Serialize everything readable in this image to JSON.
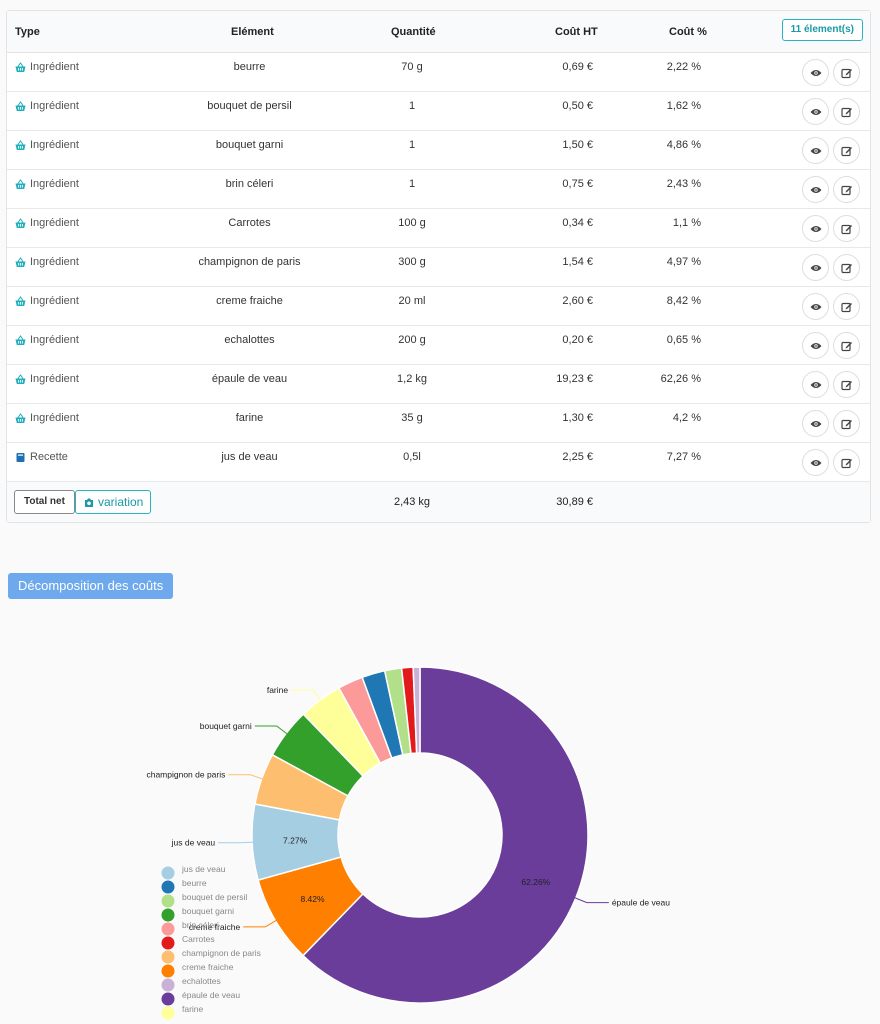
{
  "table": {
    "headers": {
      "type": "Type",
      "element": "Elément",
      "quantity": "Quantité",
      "cost": "Coût HT",
      "percent": "Coût %"
    },
    "count_badge": "11 élement(s)",
    "rows": [
      {
        "type": "Ingrédient",
        "kind": "ingredient",
        "element": "beurre",
        "quantity": "70 g",
        "cost": "0,69 €",
        "percent": "2,22 %"
      },
      {
        "type": "Ingrédient",
        "kind": "ingredient",
        "element": "bouquet de persil",
        "quantity": "1",
        "cost": "0,50 €",
        "percent": "1,62 %"
      },
      {
        "type": "Ingrédient",
        "kind": "ingredient",
        "element": "bouquet garni",
        "quantity": "1",
        "cost": "1,50 €",
        "percent": "4,86 %"
      },
      {
        "type": "Ingrédient",
        "kind": "ingredient",
        "element": "brin céleri",
        "quantity": "1",
        "cost": "0,75 €",
        "percent": "2,43 %"
      },
      {
        "type": "Ingrédient",
        "kind": "ingredient",
        "element": "Carrotes",
        "quantity": "100 g",
        "cost": "0,34 €",
        "percent": "1,1 %"
      },
      {
        "type": "Ingrédient",
        "kind": "ingredient",
        "element": "champignon de paris",
        "quantity": "300 g",
        "cost": "1,54 €",
        "percent": "4,97 %"
      },
      {
        "type": "Ingrédient",
        "kind": "ingredient",
        "element": "creme fraiche",
        "quantity": "20 ml",
        "cost": "2,60 €",
        "percent": "8,42 %"
      },
      {
        "type": "Ingrédient",
        "kind": "ingredient",
        "element": "echalottes",
        "quantity": "200 g",
        "cost": "0,20 €",
        "percent": "0,65 %"
      },
      {
        "type": "Ingrédient",
        "kind": "ingredient",
        "element": "épaule de veau",
        "quantity": "1,2 kg",
        "cost": "19,23 €",
        "percent": "62,26 %"
      },
      {
        "type": "Ingrédient",
        "kind": "ingredient",
        "element": "farine",
        "quantity": "35 g",
        "cost": "1,30 €",
        "percent": "4,2 %"
      },
      {
        "type": "Recette",
        "kind": "recipe",
        "element": "jus de veau",
        "quantity": "0,5l",
        "cost": "2,25 €",
        "percent": "7,27 %"
      }
    ],
    "footer": {
      "total_label": "Total net",
      "variation_label": "variation",
      "total_quantity": "2,43 kg",
      "total_cost": "30,89 €"
    }
  },
  "section_button": "Décomposition des coûts",
  "colors": {
    "accent": "#2ab4c0",
    "section": "#6da9ec"
  },
  "chart_data": {
    "type": "pie",
    "donut": true,
    "order": [
      "épaule de veau",
      "creme fraiche",
      "jus de veau",
      "champignon de paris",
      "bouquet garni",
      "farine",
      "brin céleri",
      "beurre",
      "bouquet de persil",
      "Carrotes",
      "echalottes"
    ],
    "slices": [
      {
        "name": "jus de veau",
        "value": 7.27,
        "color": "#a6cee3",
        "inner_label": "7.27%",
        "callout": true
      },
      {
        "name": "beurre",
        "value": 2.22,
        "color": "#1f78b4"
      },
      {
        "name": "bouquet de persil",
        "value": 1.62,
        "color": "#b2df8a"
      },
      {
        "name": "bouquet garni",
        "value": 4.86,
        "color": "#33a02c",
        "callout": true
      },
      {
        "name": "brin céleri",
        "value": 2.43,
        "color": "#fb9a99"
      },
      {
        "name": "Carrotes",
        "value": 1.1,
        "color": "#e31a1c"
      },
      {
        "name": "champignon de paris",
        "value": 4.97,
        "color": "#fdbf6f",
        "callout": true
      },
      {
        "name": "creme fraiche",
        "value": 8.42,
        "color": "#ff7f00",
        "inner_label": "8.42%",
        "callout": true
      },
      {
        "name": "echalottes",
        "value": 0.65,
        "color": "#cab2d6"
      },
      {
        "name": "épaule de veau",
        "value": 62.26,
        "color": "#6a3d9a",
        "inner_label": "62.26%",
        "callout": true
      },
      {
        "name": "farine",
        "value": 4.2,
        "color": "#ffff99",
        "callout": true
      }
    ],
    "legend": [
      "jus de veau",
      "beurre",
      "bouquet de persil",
      "bouquet garni",
      "brin céleri",
      "Carrotes",
      "champignon de paris",
      "creme fraiche",
      "echalottes",
      "épaule de veau",
      "farine"
    ],
    "legend_position": "bottom-left"
  }
}
